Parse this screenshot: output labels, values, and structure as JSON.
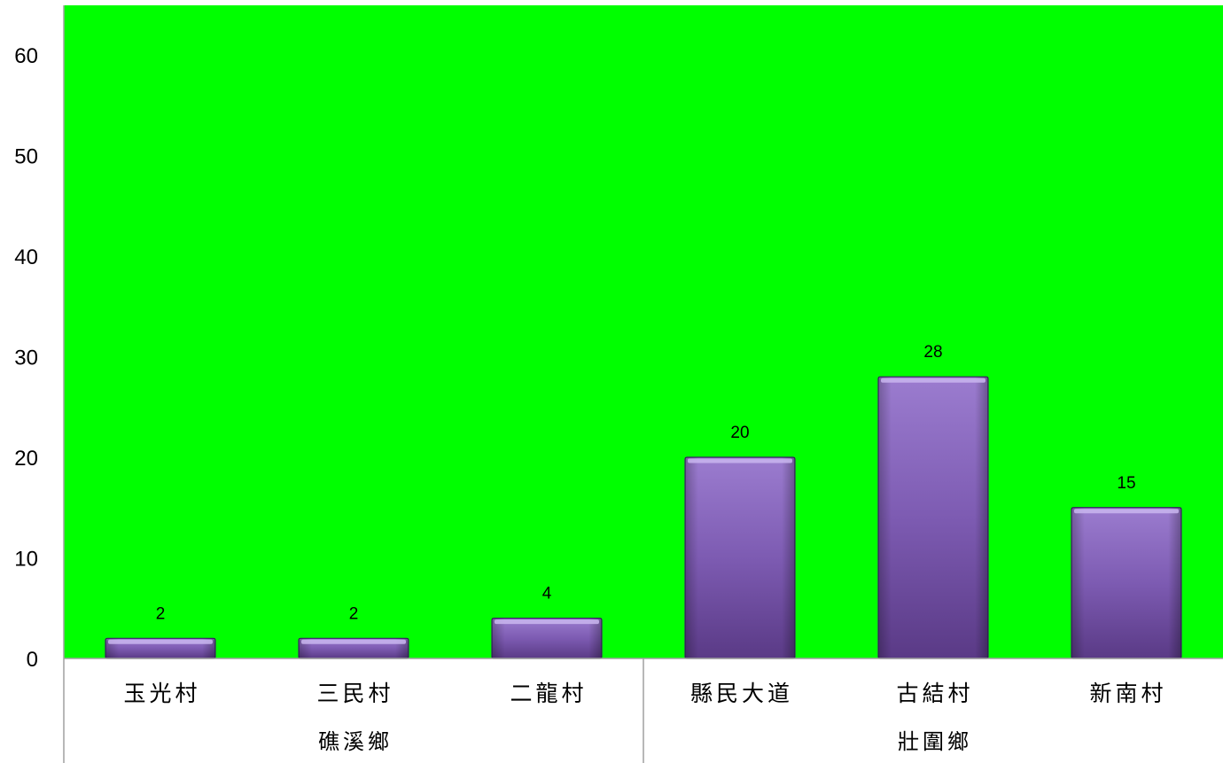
{
  "chart_data": {
    "type": "bar",
    "title": "",
    "xlabel": "",
    "ylabel": "",
    "ylim": [
      0,
      60
    ],
    "yticks": [
      0,
      10,
      20,
      30,
      40,
      50,
      60
    ],
    "grid": false,
    "categories": [
      "玉光村",
      "三民村",
      "二龍村",
      "縣民大道",
      "古結村",
      "新南村"
    ],
    "groups": [
      {
        "label": "礁溪鄉",
        "span": 3
      },
      {
        "label": "壯圍鄉",
        "span": 3
      }
    ],
    "series": [
      {
        "values": [
          2,
          2,
          4,
          20,
          28,
          15
        ]
      }
    ],
    "data_labels": [
      "2",
      "2",
      "4",
      "20",
      "28",
      "15"
    ],
    "colors": {
      "plot_bg": "#00ff00",
      "bar_top": "#9d7fd0",
      "bar_bottom": "#5a3a86",
      "bar_edge": "#3b2566",
      "axis": "#a0a0a0"
    }
  }
}
